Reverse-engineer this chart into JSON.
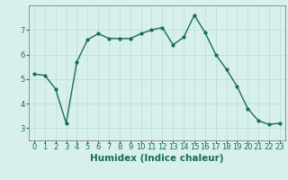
{
  "x": [
    0,
    1,
    2,
    3,
    4,
    5,
    6,
    7,
    8,
    9,
    10,
    11,
    12,
    13,
    14,
    15,
    16,
    17,
    18,
    19,
    20,
    21,
    22,
    23
  ],
  "y": [
    5.2,
    5.15,
    4.6,
    3.2,
    5.7,
    6.6,
    6.85,
    6.65,
    6.65,
    6.65,
    6.85,
    7.0,
    7.1,
    6.4,
    6.7,
    7.6,
    6.9,
    6.0,
    5.4,
    4.7,
    3.8,
    3.3,
    3.15,
    3.2
  ],
  "line_color": "#1a6b5a",
  "marker": "o",
  "marker_size": 2.0,
  "linewidth": 1.0,
  "xlabel": "Humidex (Indice chaleur)",
  "xlim": [
    -0.5,
    23.5
  ],
  "ylim": [
    2.5,
    8.0
  ],
  "yticks": [
    3,
    4,
    5,
    6,
    7
  ],
  "xticks": [
    0,
    1,
    2,
    3,
    4,
    5,
    6,
    7,
    8,
    9,
    10,
    11,
    12,
    13,
    14,
    15,
    16,
    17,
    18,
    19,
    20,
    21,
    22,
    23
  ],
  "bg_color": "#d8f0ec",
  "grid_color": "#b8ddd8",
  "xlabel_fontsize": 7.5,
  "tick_fontsize": 6.0,
  "tick_color": "#1a6b5a"
}
